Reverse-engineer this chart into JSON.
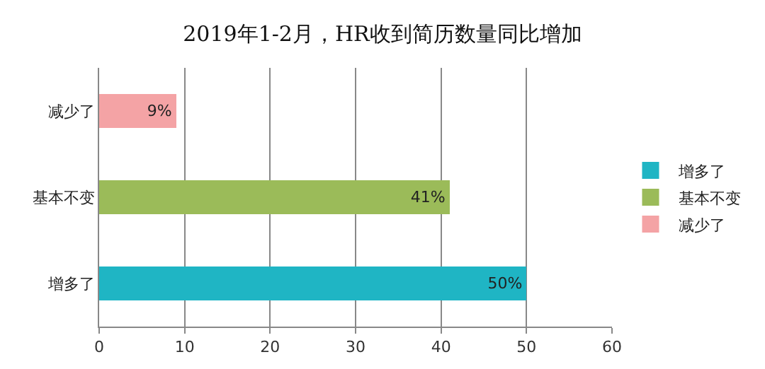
{
  "chart_data": {
    "type": "bar",
    "title": "2019年1-2月，HR收到简历数量同比增加",
    "orientation": "horizontal",
    "stacked": true,
    "categories": [
      "减少了",
      "基本不变",
      "增多了"
    ],
    "series": [
      {
        "name": "增多了",
        "color": "#1fb5c4",
        "values": [
          null,
          null,
          50
        ],
        "value_labels": [
          null,
          null,
          "50%"
        ]
      },
      {
        "name": "基本不变",
        "color": "#9bbb59",
        "values": [
          null,
          41,
          null
        ],
        "value_labels": [
          null,
          "41%",
          null
        ]
      },
      {
        "name": "减少了",
        "color": "#f4a3a5",
        "values": [
          9,
          null,
          null
        ],
        "value_labels": [
          "9%",
          null,
          null
        ]
      }
    ],
    "xlim": [
      0,
      60
    ],
    "xticks": [
      0,
      10,
      20,
      30,
      40,
      50,
      60
    ],
    "grid": "x",
    "legend": "right"
  }
}
